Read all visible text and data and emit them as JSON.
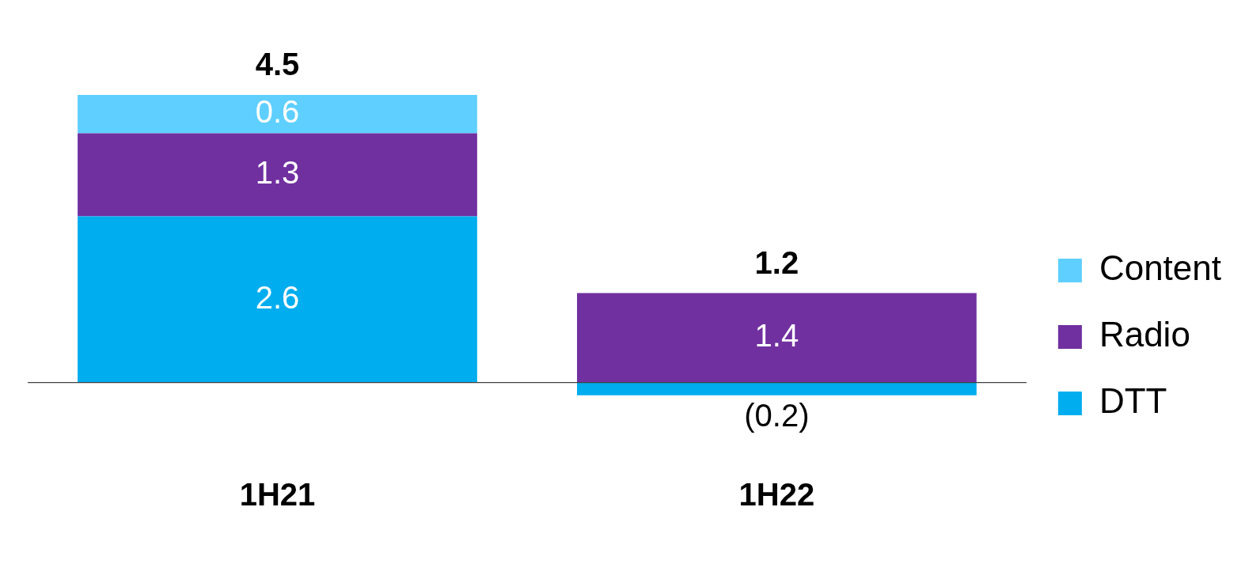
{
  "chart_data": {
    "type": "bar",
    "stacked": true,
    "categories": [
      "1H21",
      "1H22"
    ],
    "series": [
      {
        "name": "DTT",
        "color": "#00adee",
        "values": [
          2.6,
          -0.2
        ],
        "value_labels": [
          "2.6",
          "(0.2)"
        ]
      },
      {
        "name": "Radio",
        "color": "#7030a0",
        "values": [
          1.3,
          1.4
        ],
        "value_labels": [
          "1.3",
          "1.4"
        ]
      },
      {
        "name": "Content",
        "color": "#5fcfff",
        "values": [
          0.6,
          0
        ],
        "value_labels": [
          "0.6",
          null
        ]
      }
    ],
    "totals": [
      "4.5",
      "1.2"
    ],
    "legend": "right",
    "grid": false
  }
}
